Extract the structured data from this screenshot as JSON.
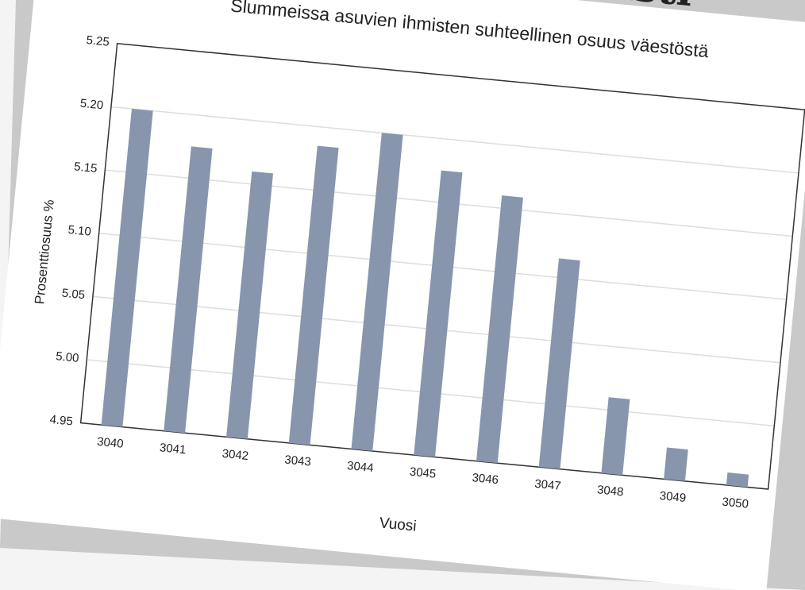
{
  "header": "merkittavästi",
  "chart_data": {
    "type": "bar",
    "title": "Slummeissa asuvien ihmisten suhteellinen osuus väestöstä",
    "x_label": "Vuosi",
    "y_label": "Prosenttiosuus %",
    "categories": [
      "3040",
      "3041",
      "3042",
      "3043",
      "3044",
      "3045",
      "3046",
      "3047",
      "3048",
      "3049",
      "3050"
    ],
    "values": [
      5.2,
      5.175,
      5.16,
      5.185,
      5.2,
      5.175,
      5.16,
      5.115,
      5.01,
      4.975,
      4.96
    ],
    "color": "#8796ad",
    "ylim": [
      4.95,
      5.25
    ],
    "yticks": [
      {
        "value": 4.95,
        "label": "4.95"
      },
      {
        "value": 5.0,
        "label": "5.00"
      },
      {
        "value": 5.05,
        "label": "5.05"
      },
      {
        "value": 5.1,
        "label": "5.10"
      },
      {
        "value": 5.15,
        "label": "5.15"
      },
      {
        "value": 5.2,
        "label": "5.20"
      },
      {
        "value": 5.25,
        "label": "5.25"
      }
    ],
    "grid": true
  }
}
